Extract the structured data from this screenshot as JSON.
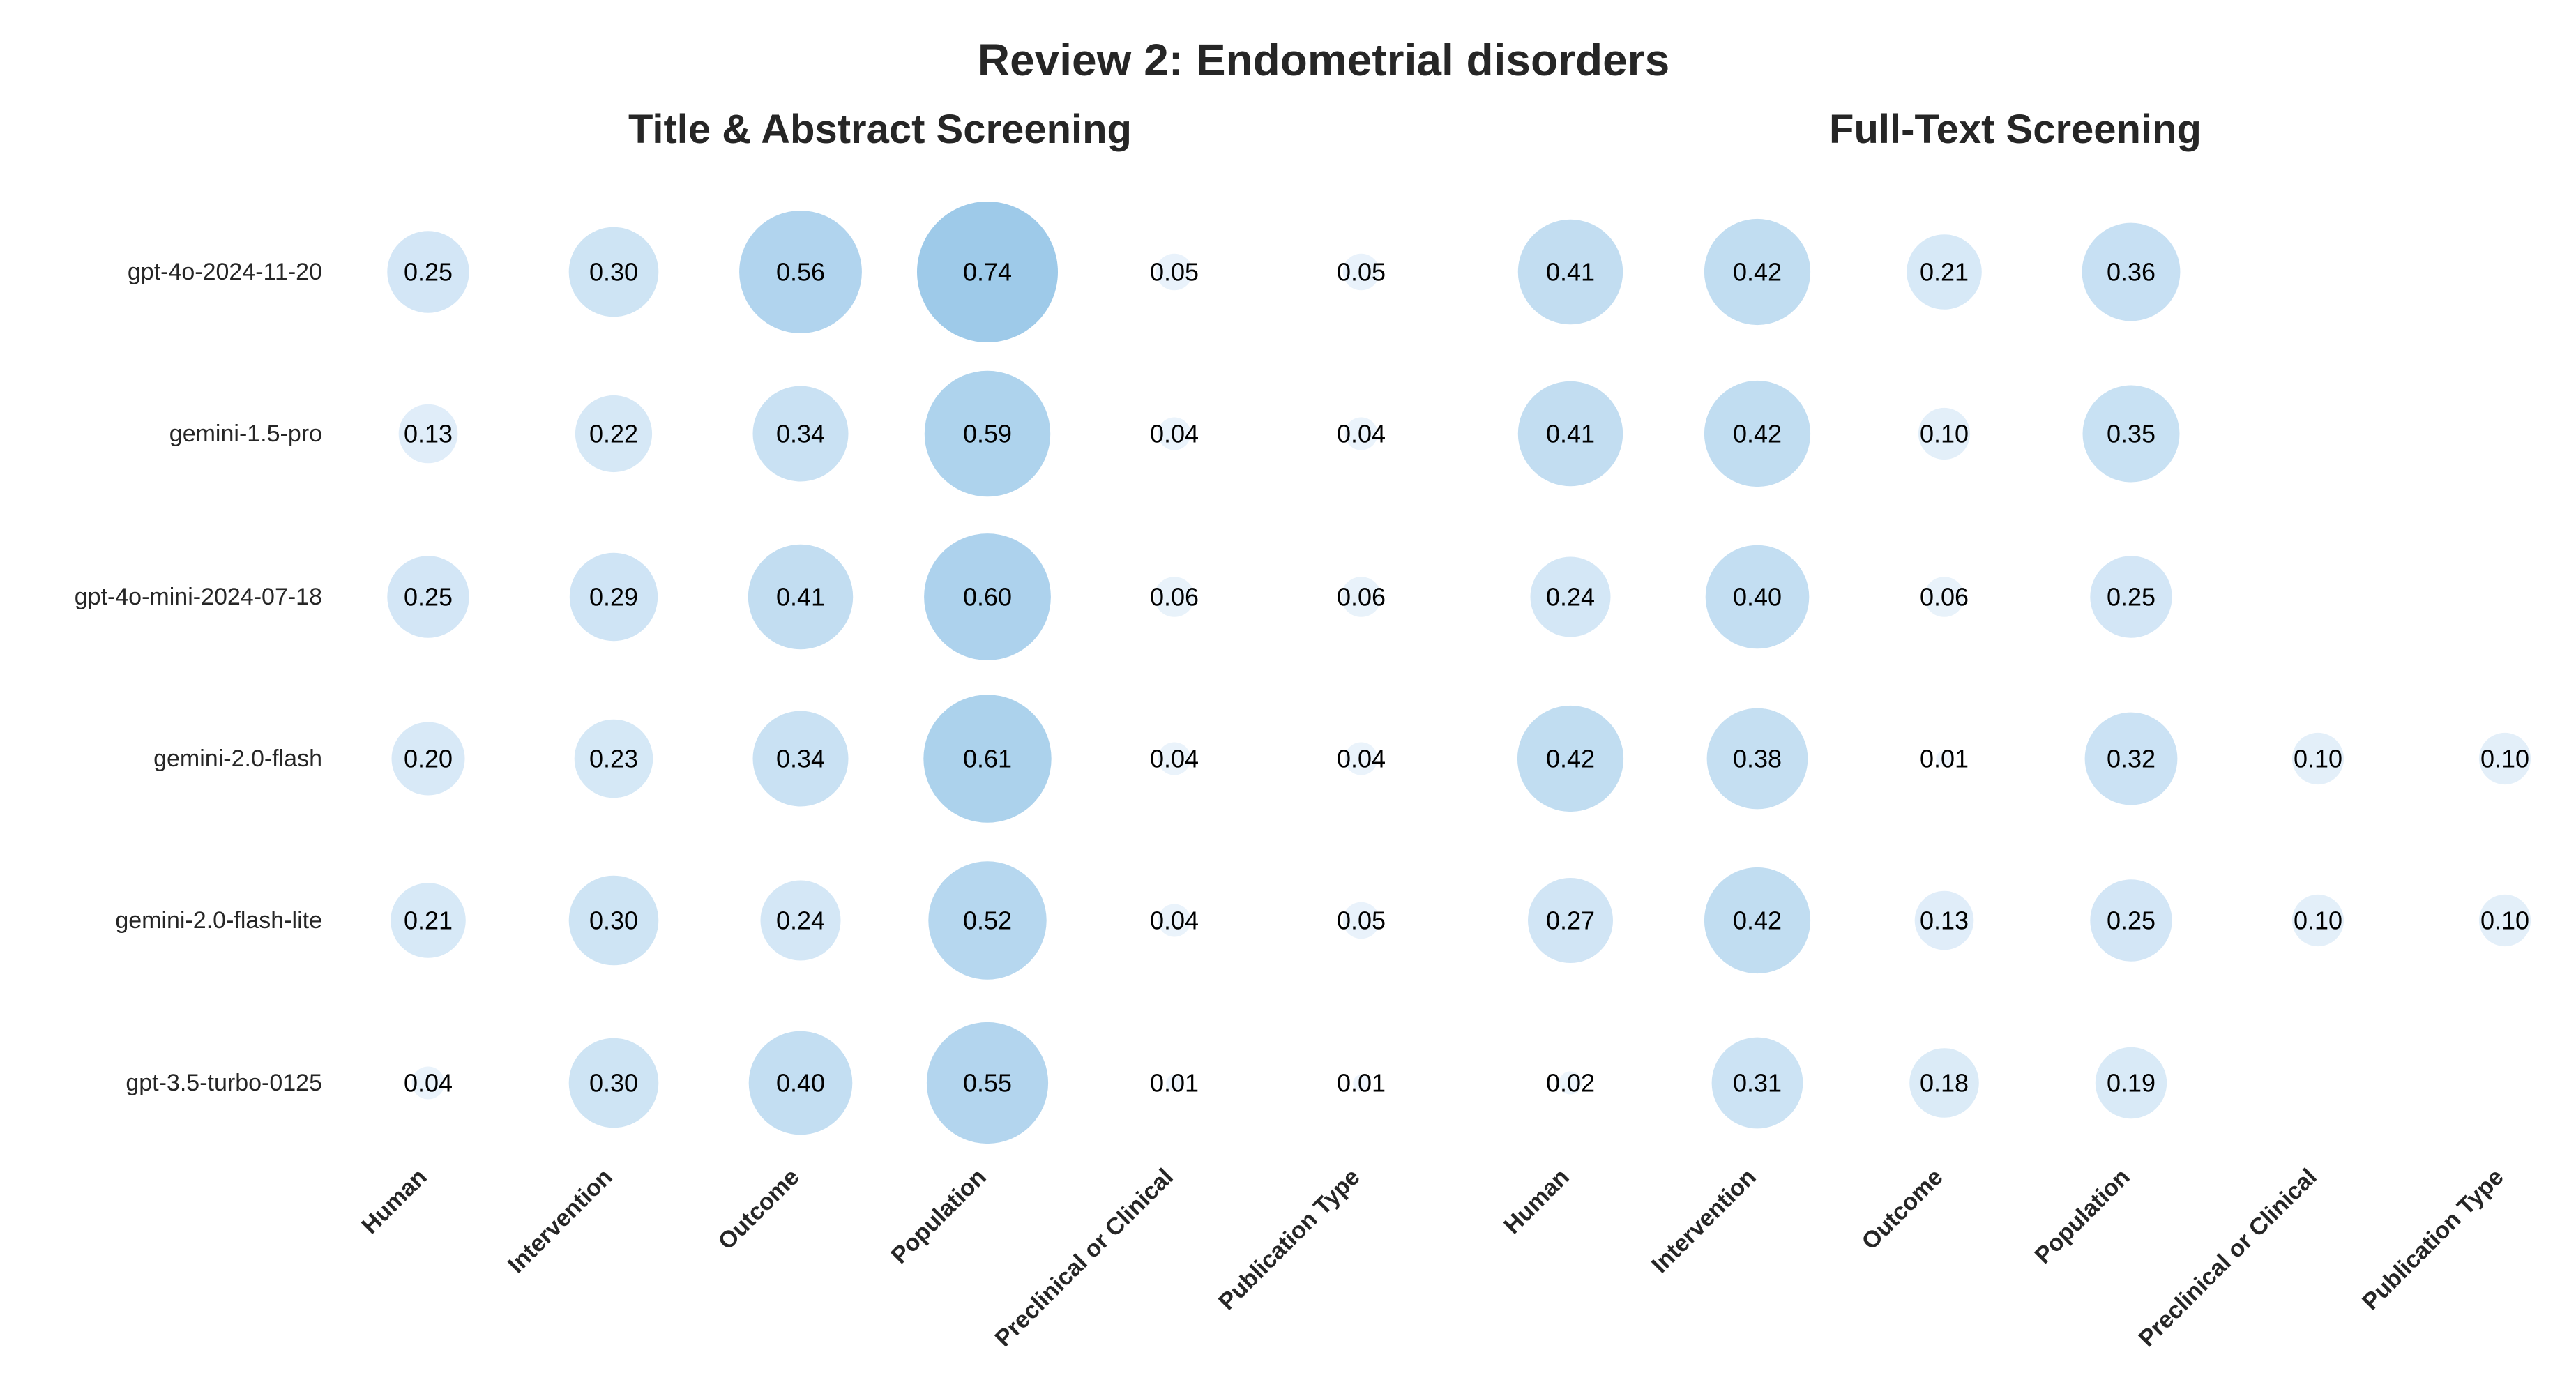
{
  "chart_data": {
    "type": "scatter",
    "title": "Review 2: Endometrial disorders",
    "models": [
      "gpt-4o-2024-11-20",
      "gemini-1.5-pro",
      "gpt-4o-mini-2024-07-18",
      "gemini-2.0-flash",
      "gemini-2.0-flash-lite",
      "gpt-3.5-turbo-0125"
    ],
    "categories": [
      "Human",
      "Intervention",
      "Outcome",
      "Population",
      "Preclinical or Clinical",
      "Publication Type"
    ],
    "panels": [
      {
        "title": "Title & Abstract Screening",
        "values": [
          [
            0.25,
            0.3,
            0.56,
            0.74,
            0.05,
            0.05
          ],
          [
            0.13,
            0.22,
            0.34,
            0.59,
            0.04,
            0.04
          ],
          [
            0.25,
            0.29,
            0.41,
            0.6,
            0.06,
            0.06
          ],
          [
            0.2,
            0.23,
            0.34,
            0.61,
            0.04,
            0.04
          ],
          [
            0.21,
            0.3,
            0.24,
            0.52,
            0.04,
            0.05
          ],
          [
            0.04,
            0.3,
            0.4,
            0.55,
            0.01,
            0.01
          ]
        ]
      },
      {
        "title": "Full-Text Screening",
        "values": [
          [
            0.41,
            0.42,
            0.21,
            0.36,
            null,
            null
          ],
          [
            0.41,
            0.42,
            0.1,
            0.35,
            null,
            null
          ],
          [
            0.24,
            0.4,
            0.06,
            0.25,
            null,
            null
          ],
          [
            0.42,
            0.38,
            0.01,
            0.32,
            0.1,
            0.1
          ],
          [
            0.27,
            0.42,
            0.13,
            0.25,
            0.1,
            0.1
          ],
          [
            0.02,
            0.31,
            0.18,
            0.19,
            null,
            null
          ]
        ]
      }
    ],
    "value_format": "2 decimals",
    "colors": {
      "low": "#eef5fc",
      "high": "#9ecae9",
      "text": "#000000",
      "title": "#262626"
    }
  }
}
